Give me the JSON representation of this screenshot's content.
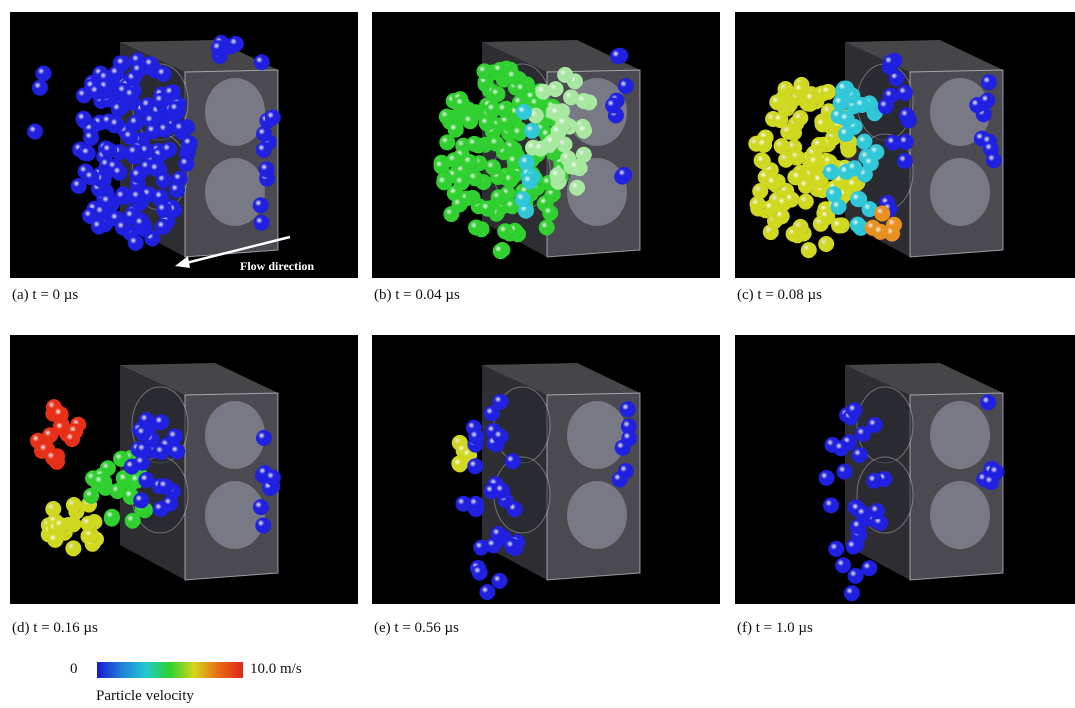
{
  "panels": [
    {
      "caption": "(a) t = 0 µs"
    },
    {
      "caption": "(b) t = 0.04 µs"
    },
    {
      "caption": "(c) t = 0.08 µs"
    },
    {
      "caption": "(d) t = 0.16 µs"
    },
    {
      "caption": "(e) t = 0.56 µs"
    },
    {
      "caption": "(f) t = 1.0 µs"
    }
  ],
  "flow_label": "Flow direction",
  "colorbar": {
    "min_label": "0",
    "max_label": "10.0 m/s",
    "title": "Particle velocity"
  }
}
